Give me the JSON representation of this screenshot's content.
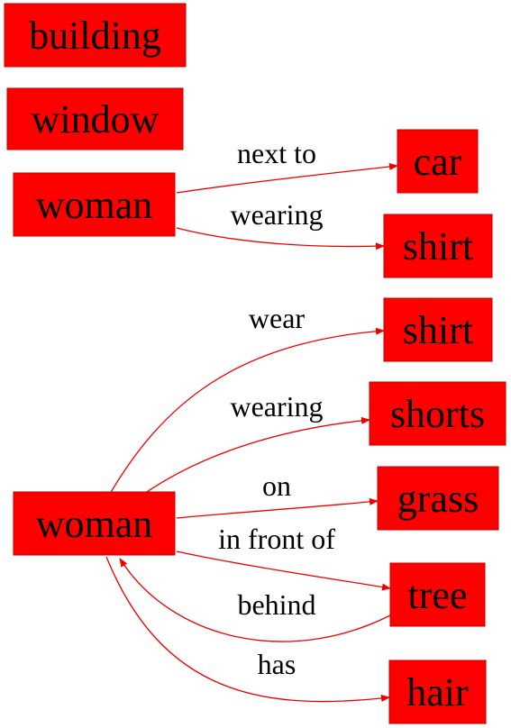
{
  "colors": {
    "node_fill": "#ff0000",
    "edge": "#ee0000",
    "text": "#000000"
  },
  "nodes": [
    {
      "id": "building1",
      "label": "building"
    },
    {
      "id": "window1",
      "label": "window"
    },
    {
      "id": "woman1",
      "label": "woman"
    },
    {
      "id": "car1",
      "label": "car"
    },
    {
      "id": "shirt1",
      "label": "shirt"
    },
    {
      "id": "woman2",
      "label": "woman"
    },
    {
      "id": "shirt2",
      "label": "shirt"
    },
    {
      "id": "shorts1",
      "label": "shorts"
    },
    {
      "id": "grass1",
      "label": "grass"
    },
    {
      "id": "tree1",
      "label": "tree"
    },
    {
      "id": "hair1",
      "label": "hair"
    }
  ],
  "edges": [
    {
      "id": "e1",
      "from": "woman1",
      "to": "car1",
      "label": "next to"
    },
    {
      "id": "e2",
      "from": "woman1",
      "to": "shirt1",
      "label": "wearing"
    },
    {
      "id": "e3",
      "from": "woman2",
      "to": "shirt2",
      "label": "wear"
    },
    {
      "id": "e4",
      "from": "woman2",
      "to": "shorts1",
      "label": "wearing"
    },
    {
      "id": "e5",
      "from": "woman2",
      "to": "grass1",
      "label": "on"
    },
    {
      "id": "e6",
      "from": "woman2",
      "to": "tree1",
      "label": "in front of"
    },
    {
      "id": "e7",
      "from": "tree1",
      "to": "woman2",
      "label": "behind"
    },
    {
      "id": "e8",
      "from": "woman2",
      "to": "hair1",
      "label": "has"
    }
  ]
}
